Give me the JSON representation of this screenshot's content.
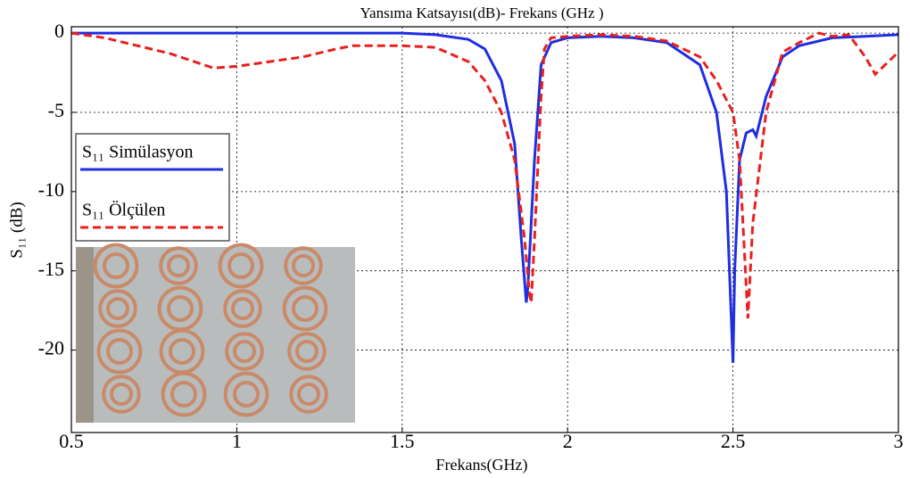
{
  "chart_data": {
    "type": "line",
    "title": "Yansıma Katsayısı(dB)- Frekans (GHz )",
    "x_label": "Frekans(GHz)",
    "y_label": "S₁₁ (dB)",
    "xlim": [
      0.5,
      3
    ],
    "ylim": [
      -25.2,
      0.4
    ],
    "xticks": [
      0.5,
      1,
      1.5,
      2,
      2.5,
      3
    ],
    "yticks": [
      0,
      -5,
      -10,
      -15,
      -20
    ],
    "grid": true,
    "legend": "left",
    "series": [
      {
        "name": "S₁₁ Simülasyon",
        "color": "#1f2ee0",
        "dash": "solid",
        "x": [
          0.5,
          1,
          1.5,
          1.6,
          1.7,
          1.75,
          1.8,
          1.84,
          1.86,
          1.875,
          1.88,
          1.9,
          1.92,
          1.95,
          2.0,
          2.1,
          2.2,
          2.3,
          2.4,
          2.45,
          2.48,
          2.495,
          2.5,
          2.505,
          2.52,
          2.54,
          2.56,
          2.57,
          2.6,
          2.65,
          2.7,
          2.8,
          2.9,
          3.0
        ],
        "values": [
          0,
          0,
          0,
          -0.1,
          -0.4,
          -1,
          -3,
          -7,
          -13,
          -17,
          -16,
          -8,
          -2,
          -0.6,
          -0.3,
          -0.2,
          -0.3,
          -0.6,
          -2,
          -5,
          -10,
          -18,
          -20.8,
          -15,
          -8,
          -6.3,
          -6.1,
          -6.5,
          -4,
          -1.5,
          -0.8,
          -0.3,
          -0.2,
          -0.1
        ]
      },
      {
        "name": "S₁₁ Ölçülen",
        "color": "#e8201e",
        "dash": "dashed",
        "x": [
          0.5,
          0.6,
          0.7,
          0.8,
          0.9,
          0.93,
          1.0,
          1.1,
          1.2,
          1.3,
          1.35,
          1.5,
          1.6,
          1.7,
          1.75,
          1.8,
          1.84,
          1.87,
          1.885,
          1.89,
          1.9,
          1.92,
          1.93,
          1.95,
          2.0,
          2.1,
          2.2,
          2.3,
          2.4,
          2.45,
          2.5,
          2.52,
          2.535,
          2.545,
          2.56,
          2.6,
          2.65,
          2.7,
          2.76,
          2.8,
          2.85,
          2.9,
          2.93,
          2.97,
          3.0
        ],
        "values": [
          0,
          -0.3,
          -0.8,
          -1.3,
          -2.0,
          -2.2,
          -2.1,
          -1.8,
          -1.5,
          -1.0,
          -0.8,
          -0.8,
          -0.9,
          -1.8,
          -3,
          -5,
          -8,
          -13,
          -16.5,
          -17,
          -13,
          -4,
          -1,
          -0.3,
          -0.2,
          -0.1,
          -0.2,
          -0.5,
          -1.5,
          -3,
          -5,
          -8,
          -14,
          -18,
          -12,
          -5,
          -1.2,
          -0.6,
          0,
          -0.2,
          -0.1,
          -1.5,
          -2.6,
          -1.8,
          -1.2
        ]
      }
    ]
  }
}
